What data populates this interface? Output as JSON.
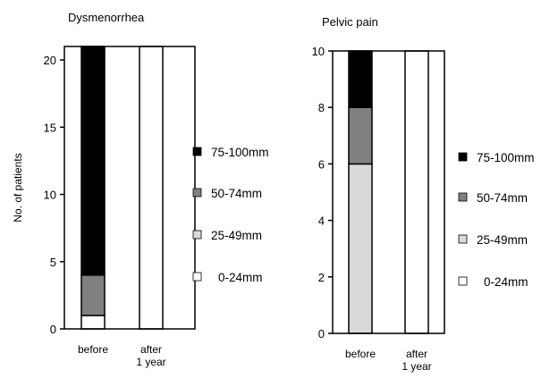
{
  "chart_data": [
    {
      "type": "bar",
      "stacked": true,
      "title": "Dysmenorrhea",
      "ylabel": "No. of patients",
      "xlabel": "",
      "categories": [
        "before",
        "after 1 year"
      ],
      "ylim": [
        0,
        21
      ],
      "yticks": [
        0,
        5,
        10,
        15,
        20
      ],
      "grid": false,
      "legend_placement": "right",
      "series": [
        {
          "name": "0-24mm",
          "color": "#ffffff",
          "values": [
            1,
            21
          ]
        },
        {
          "name": "25-49mm",
          "color": "#d9d9d9",
          "values": [
            0,
            0
          ]
        },
        {
          "name": "50-74mm",
          "color": "#808080",
          "values": [
            3,
            0
          ]
        },
        {
          "name": "75-100mm",
          "color": "#000000",
          "values": [
            17,
            0
          ]
        }
      ]
    },
    {
      "type": "bar",
      "stacked": true,
      "title": "Pelvic pain",
      "ylabel": "",
      "xlabel": "",
      "categories": [
        "before",
        "after 1 year"
      ],
      "ylim": [
        0,
        10
      ],
      "yticks": [
        0,
        2,
        4,
        6,
        8,
        10
      ],
      "grid": false,
      "legend_placement": "right",
      "series": [
        {
          "name": "0-24mm",
          "color": "#ffffff",
          "values": [
            0,
            10
          ]
        },
        {
          "name": "25-49mm",
          "color": "#d9d9d9",
          "values": [
            6,
            0
          ]
        },
        {
          "name": "50-74mm",
          "color": "#808080",
          "values": [
            2,
            0
          ]
        },
        {
          "name": "75-100mm",
          "color": "#000000",
          "values": [
            2,
            0
          ]
        }
      ]
    }
  ]
}
